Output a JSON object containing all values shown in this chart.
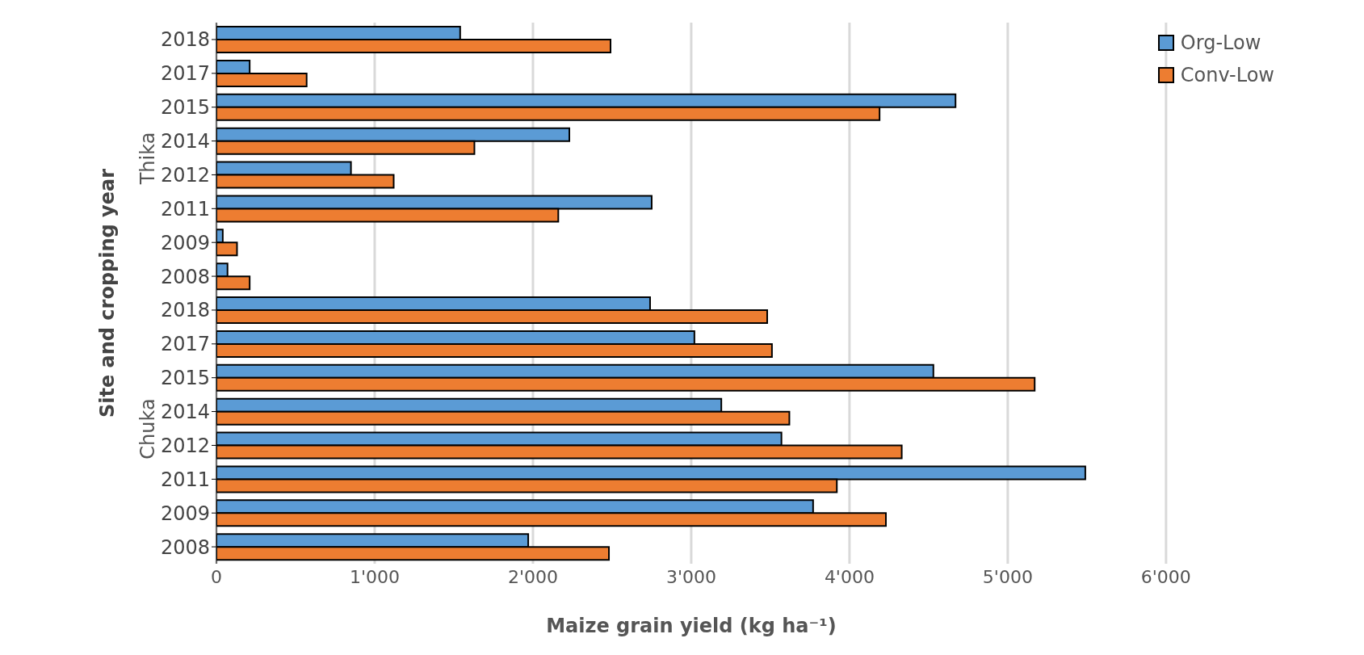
{
  "chart_data": {
    "type": "bar",
    "orientation": "horizontal",
    "xlabel": "Maize grain yield (kg ha⁻¹)",
    "ylabel": "Site and cropping year",
    "categories": [
      "2018",
      "2017",
      "2015",
      "2014",
      "2012",
      "2011",
      "2009",
      "2008",
      "2018",
      "2017",
      "2015",
      "2014",
      "2012",
      "2011",
      "2009",
      "2008"
    ],
    "series": [
      {
        "name": "Org-Low",
        "color": "#5b9bd5",
        "values": [
          1540,
          210,
          4670,
          2230,
          850,
          2750,
          40,
          70,
          2740,
          3020,
          4530,
          3190,
          3570,
          5490,
          3770,
          1970
        ]
      },
      {
        "name": "Conv-Low",
        "color": "#ed7d31",
        "values": [
          2490,
          570,
          4190,
          1630,
          1120,
          2160,
          130,
          210,
          3480,
          3510,
          5170,
          3620,
          4330,
          3920,
          4230,
          2480
        ]
      }
    ],
    "xlim": [
      0,
      6000
    ],
    "xticks": [
      0,
      {
        "value": 1000,
        "label": "1'000"
      },
      {
        "value": 2000,
        "label": "2'000"
      },
      {
        "value": 3000,
        "label": "3'000"
      },
      {
        "value": 4000,
        "label": "4'000"
      },
      {
        "value": 5000,
        "label": "5'000"
      },
      {
        "value": 6000,
        "label": "6'000"
      }
    ],
    "annotations": [
      "Thika",
      "Chuka"
    ],
    "grid": "x",
    "legend": "top right"
  }
}
